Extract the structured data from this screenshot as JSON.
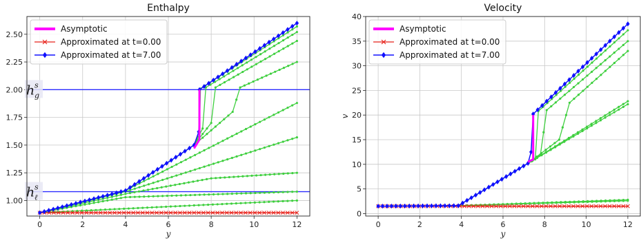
{
  "chart_data": [
    {
      "type": "line",
      "title": "Enthalpy",
      "xlabel": "y",
      "ylabel": "",
      "xlim": [
        -0.6,
        12.6
      ],
      "ylim": [
        0.86,
        2.66
      ],
      "xticks": [
        0,
        2,
        4,
        6,
        8,
        10,
        12
      ],
      "yticks": [
        1.0,
        1.25,
        1.5,
        1.75,
        2.0,
        2.25,
        2.5
      ],
      "ytick_labels": [
        "1.00",
        "1.25",
        "1.50",
        "1.75",
        "2.00",
        "2.25",
        "2.50"
      ],
      "grid": true,
      "legend": "top-left",
      "annotations": [
        {
          "text": "h",
          "sup": "s",
          "sub": "g",
          "y": 2.0
        },
        {
          "text": "h",
          "sup": "s",
          "sub": "ℓ",
          "y": 1.08
        }
      ],
      "hlines": [
        2.0,
        1.08
      ],
      "series": [
        {
          "name": "Asymptotic",
          "x": [
            7.2,
            7.45,
            7.45
          ],
          "y": [
            1.47,
            1.55,
            2.0
          ]
        },
        {
          "name": "Approximated at t=0.00",
          "x": [
            0,
            12
          ],
          "y": [
            0.89,
            0.89
          ]
        },
        {
          "name": "Approximated at t=7.00",
          "x": [
            0,
            4,
            7.2,
            7.42,
            7.45,
            12
          ],
          "y": [
            0.89,
            1.09,
            1.5,
            1.62,
            2.0,
            2.6
          ]
        }
      ],
      "intermediate": [
        {
          "x": [
            0,
            12
          ],
          "y": [
            0.89,
            1.0
          ]
        },
        {
          "x": [
            0,
            4,
            12
          ],
          "y": [
            0.89,
            1.03,
            1.08
          ]
        },
        {
          "x": [
            0,
            4,
            8,
            12
          ],
          "y": [
            0.89,
            1.06,
            1.2,
            1.25
          ]
        },
        {
          "x": [
            0,
            4,
            12
          ],
          "y": [
            0.89,
            1.08,
            1.57
          ]
        },
        {
          "x": [
            0,
            4,
            12
          ],
          "y": [
            0.89,
            1.09,
            1.88
          ]
        },
        {
          "x": [
            0,
            4,
            7.2,
            9.0,
            9.35,
            12
          ],
          "y": [
            0.89,
            1.09,
            1.5,
            1.8,
            2.02,
            2.25
          ]
        },
        {
          "x": [
            0,
            4,
            7.2,
            8.0,
            8.2,
            12
          ],
          "y": [
            0.89,
            1.09,
            1.5,
            1.7,
            2.02,
            2.44
          ]
        },
        {
          "x": [
            0,
            4,
            7.2,
            7.6,
            7.75,
            12
          ],
          "y": [
            0.89,
            1.09,
            1.5,
            1.65,
            2.02,
            2.52
          ]
        },
        {
          "x": [
            0,
            4,
            7.2,
            7.45,
            7.5,
            12
          ],
          "y": [
            0.89,
            1.09,
            1.5,
            1.6,
            2.01,
            2.57
          ]
        }
      ]
    },
    {
      "type": "line",
      "title": "Velocity",
      "xlabel": "y",
      "ylabel": "v",
      "xlim": [
        -0.6,
        12.6
      ],
      "ylim": [
        -0.5,
        40
      ],
      "xticks": [
        0,
        2,
        4,
        6,
        8,
        10,
        12
      ],
      "yticks": [
        0,
        5,
        10,
        15,
        20,
        25,
        30,
        35,
        40
      ],
      "ytick_labels": [
        "0",
        "5",
        "10",
        "15",
        "20",
        "25",
        "30",
        "35",
        "40"
      ],
      "grid": true,
      "legend": "top-left",
      "series": [
        {
          "name": "Asymptotic",
          "x": [
            7.2,
            7.45,
            7.45
          ],
          "y": [
            10.5,
            11.0,
            20.0
          ]
        },
        {
          "name": "Approximated at t=0.00",
          "x": [
            0,
            12
          ],
          "y": [
            1.5,
            1.5
          ]
        },
        {
          "name": "Approximated at t=7.00",
          "x": [
            0,
            3.85,
            7.2,
            7.35,
            7.45,
            12
          ],
          "y": [
            1.5,
            1.6,
            10.2,
            12.5,
            20.2,
            38.5
          ]
        }
      ],
      "intermediate": [
        {
          "x": [
            0,
            3.85,
            12
          ],
          "y": [
            1.5,
            1.6,
            2.6
          ]
        },
        {
          "x": [
            0,
            3.85,
            12
          ],
          "y": [
            1.5,
            1.6,
            2.8
          ]
        },
        {
          "x": [
            0,
            3.85,
            7.2,
            12
          ],
          "y": [
            1.5,
            1.6,
            10.2,
            22.2
          ]
        },
        {
          "x": [
            0,
            3.85,
            7.2,
            12
          ],
          "y": [
            1.5,
            1.6,
            10.2,
            22.8
          ]
        },
        {
          "x": [
            0,
            3.85,
            7.2,
            8.7,
            9.2,
            12
          ],
          "y": [
            1.5,
            1.6,
            10.2,
            15.0,
            22.5,
            33.0
          ]
        },
        {
          "x": [
            0,
            3.85,
            7.2,
            7.8,
            8.1,
            12
          ],
          "y": [
            1.5,
            1.6,
            10.2,
            12.0,
            21.0,
            35.0
          ]
        },
        {
          "x": [
            0,
            3.85,
            7.2,
            7.55,
            7.7,
            12
          ],
          "y": [
            1.5,
            1.6,
            10.2,
            11.0,
            20.8,
            37.2
          ]
        }
      ]
    }
  ],
  "colors": {
    "asymptotic": "#ff00ff",
    "t0": "#e8221b",
    "t7": "#1010ff",
    "intermediate": "#3ecf3e",
    "hline": "#2b2bff",
    "grid": "#c8c8c8"
  }
}
